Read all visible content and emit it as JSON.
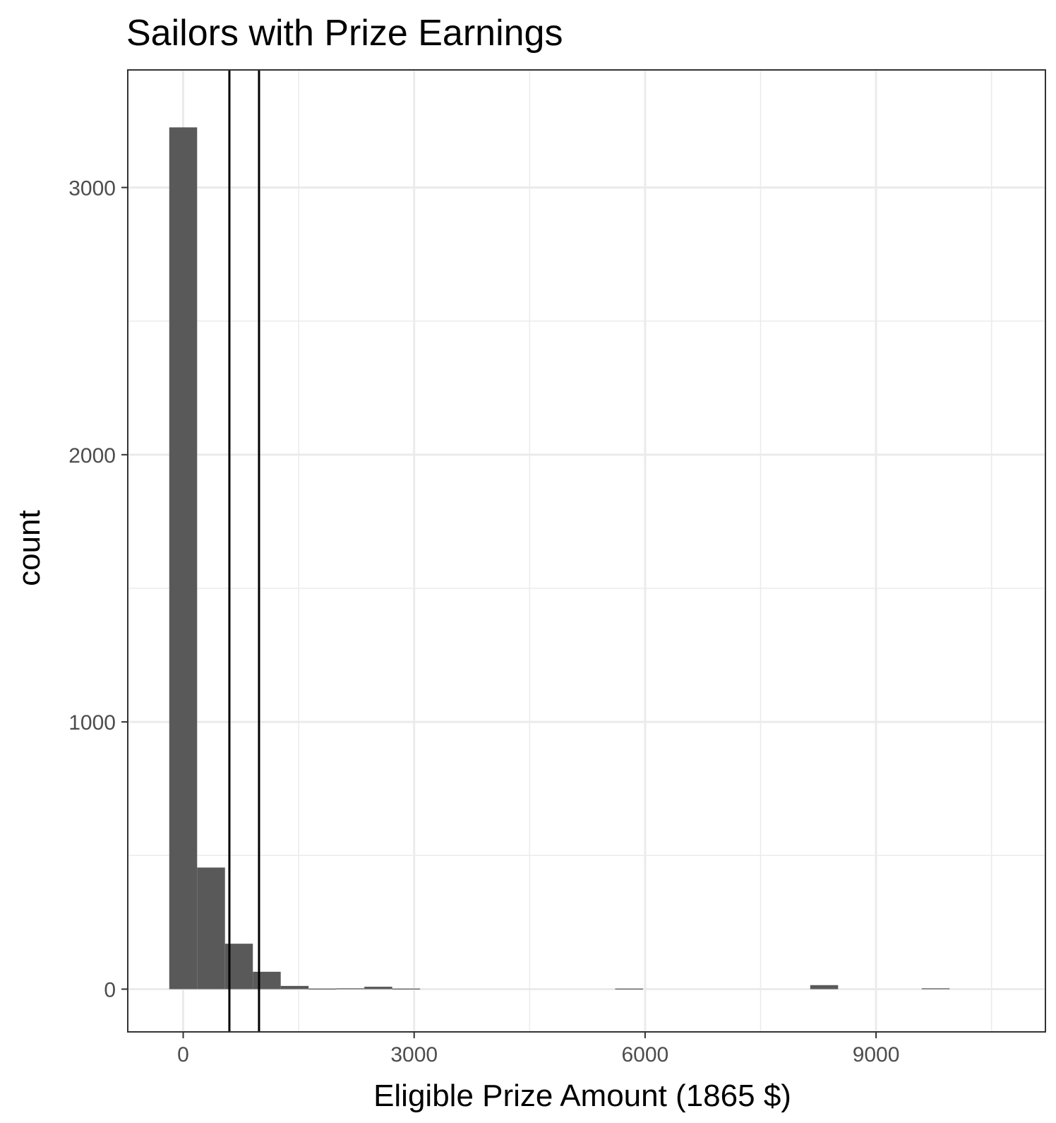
{
  "chart_data": {
    "type": "bar",
    "title": "Sailors with Prize Earnings",
    "xlabel": "Eligible Prize Amount (1865 $)",
    "ylabel": "count",
    "xlim": [
      -720,
      11200
    ],
    "ylim": [
      -160,
      3440
    ],
    "x_ticks": [
      {
        "value": 0,
        "label": "0"
      },
      {
        "value": 3000,
        "label": "3000"
      },
      {
        "value": 6000,
        "label": "6000"
      },
      {
        "value": 9000,
        "label": "9000"
      }
    ],
    "x_minor_ticks": [
      1500,
      4500,
      7500,
      10500
    ],
    "y_ticks": [
      {
        "value": 0,
        "label": "0"
      },
      {
        "value": 1000,
        "label": "1000"
      },
      {
        "value": 2000,
        "label": "2000"
      },
      {
        "value": 3000,
        "label": "3000"
      }
    ],
    "y_minor_ticks": [
      500,
      1500,
      2500
    ],
    "grid": true,
    "bin_width": 362,
    "bins": [
      {
        "center": 0,
        "count": 3225
      },
      {
        "center": 362,
        "count": 455
      },
      {
        "center": 724,
        "count": 170
      },
      {
        "center": 1086,
        "count": 65
      },
      {
        "center": 1448,
        "count": 12
      },
      {
        "center": 1810,
        "count": 2
      },
      {
        "center": 2172,
        "count": 3
      },
      {
        "center": 2534,
        "count": 9
      },
      {
        "center": 2896,
        "count": 2
      },
      {
        "center": 5792,
        "count": 2
      },
      {
        "center": 8326,
        "count": 15
      },
      {
        "center": 9774,
        "count": 3
      }
    ],
    "vlines": [
      {
        "x": 600
      },
      {
        "x": 985
      }
    ],
    "colors": {
      "bar": "#595959",
      "grid": "#ebebeb",
      "panel_border": "#333333",
      "vline": "#000000",
      "tick_label": "#4d4d4d"
    }
  }
}
